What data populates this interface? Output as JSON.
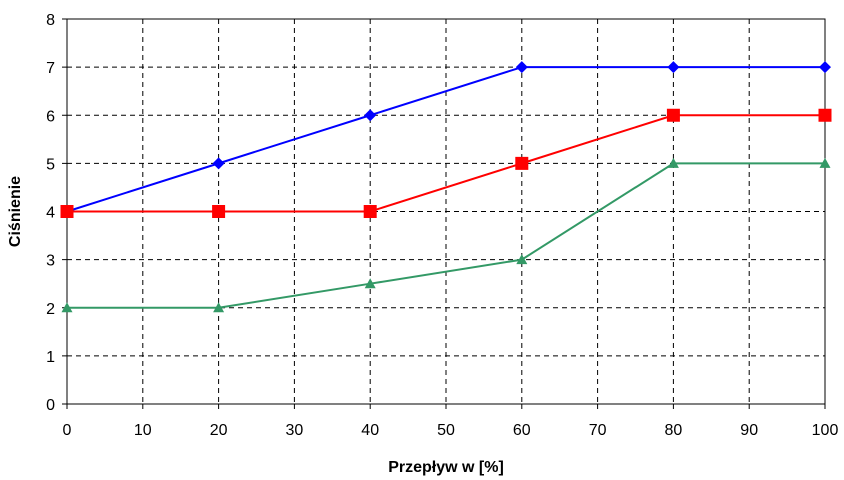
{
  "chart_data": {
    "type": "line",
    "title": "",
    "xlabel": "Przepływ w [%]",
    "ylabel": "Ciśnienie",
    "xlim": [
      0,
      100
    ],
    "ylim": [
      0,
      8
    ],
    "x_ticks": [
      0,
      10,
      20,
      30,
      40,
      50,
      60,
      70,
      80,
      90,
      100
    ],
    "y_ticks": [
      0,
      1,
      2,
      3,
      4,
      5,
      6,
      7,
      8
    ],
    "grid": true,
    "legend": "none",
    "series": [
      {
        "color": "#0000ff",
        "marker": "diamond",
        "x": [
          0,
          20,
          40,
          60,
          80,
          100
        ],
        "y": [
          4,
          5,
          6,
          7,
          7,
          7
        ]
      },
      {
        "color": "#ff0000",
        "marker": "square",
        "x": [
          0,
          20,
          40,
          60,
          80,
          100
        ],
        "y": [
          4,
          4,
          4,
          5,
          6,
          6
        ]
      },
      {
        "color": "#339966",
        "marker": "triangle",
        "x": [
          0,
          20,
          40,
          60,
          80,
          100
        ],
        "y": [
          2,
          2,
          2.5,
          3,
          5,
          5
        ]
      }
    ]
  }
}
